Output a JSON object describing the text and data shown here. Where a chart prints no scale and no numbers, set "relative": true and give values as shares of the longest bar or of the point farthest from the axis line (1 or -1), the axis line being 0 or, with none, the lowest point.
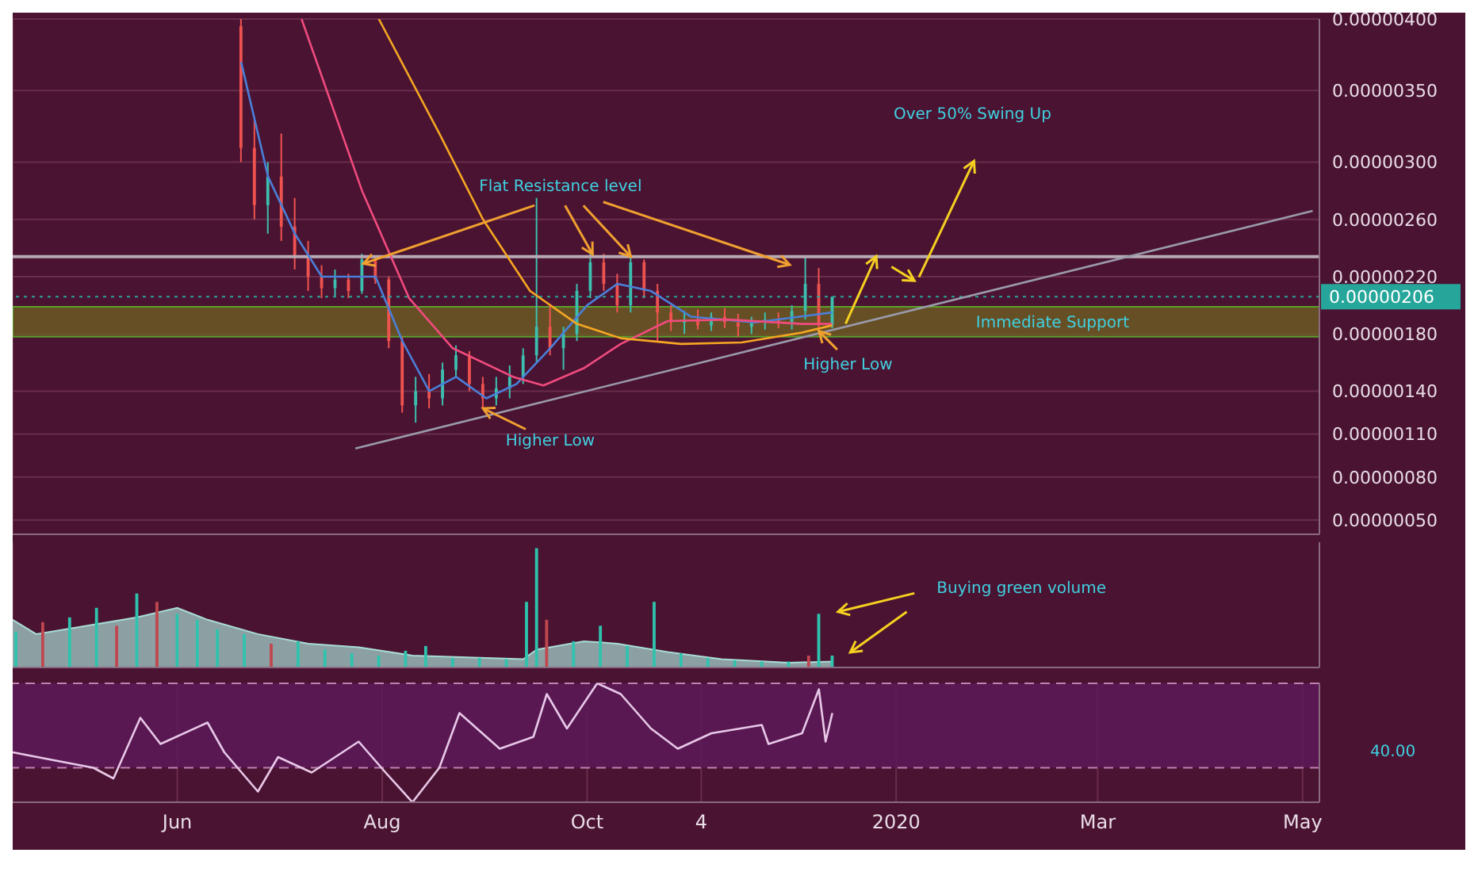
{
  "chart_data": [
    {
      "type": "candlestick",
      "xlim": [
        "2019-04-13",
        "2020-05-06"
      ],
      "ylim": [
        4e-07,
        4e-06
      ],
      "xticks": [
        {
          "value": "2019-06-01",
          "label": null
        },
        {
          "value": "2019-08-01",
          "label": null
        },
        {
          "value": "2019-10-01",
          "label": null
        },
        {
          "value": "2019-11-04",
          "label": null
        },
        {
          "value": "2020-01-01",
          "label": null
        },
        {
          "value": "2020-03-01",
          "label": null
        },
        {
          "value": "2020-05-01",
          "label": null
        }
      ],
      "yticks": [
        {
          "value": 5e-07,
          "label": "0.00000050"
        },
        {
          "value": 8e-07,
          "label": "0.00000080"
        },
        {
          "value": 1.1e-06,
          "label": "0.00000110"
        },
        {
          "value": 1.4e-06,
          "label": "0.00000140"
        },
        {
          "value": 1.8e-06,
          "label": "0.00000180"
        },
        {
          "value": 2.2e-06,
          "label": "0.00000220"
        },
        {
          "value": 2.6e-06,
          "label": "0.00000260"
        },
        {
          "value": 3e-06,
          "label": "0.00000300"
        },
        {
          "value": 3.5e-06,
          "label": "0.00000350"
        },
        {
          "value": 4e-06,
          "label": "0.00000400"
        }
      ],
      "tick_labels": "y",
      "grid": true,
      "legend": false,
      "marker": "none",
      "x": [
        "2019-06-20",
        "2019-06-24",
        "2019-06-28",
        "2019-07-02",
        "2019-07-06",
        "2019-07-10",
        "2019-07-14",
        "2019-07-18",
        "2019-07-22",
        "2019-07-26",
        "2019-07-30",
        "2019-08-03",
        "2019-08-07",
        "2019-08-11",
        "2019-08-15",
        "2019-08-19",
        "2019-08-23",
        "2019-08-27",
        "2019-08-31",
        "2019-09-04",
        "2019-09-08",
        "2019-09-12",
        "2019-09-16",
        "2019-09-20",
        "2019-09-24",
        "2019-09-28",
        "2019-10-02",
        "2019-10-06",
        "2019-10-10",
        "2019-10-14",
        "2019-10-18",
        "2019-10-22",
        "2019-10-26",
        "2019-10-30",
        "2019-11-03",
        "2019-11-07",
        "2019-11-11",
        "2019-11-15",
        "2019-11-19",
        "2019-11-23",
        "2019-11-27",
        "2019-12-01",
        "2019-12-05",
        "2019-12-09",
        "2019-12-13"
      ],
      "ohlc": [
        [
          3.95e-06,
          4e-06,
          3e-06,
          3.1e-06
        ],
        [
          3.1e-06,
          3.3e-06,
          2.6e-06,
          2.7e-06
        ],
        [
          2.7e-06,
          3e-06,
          2.5e-06,
          2.9e-06
        ],
        [
          2.9e-06,
          3.2e-06,
          2.45e-06,
          2.55e-06
        ],
        [
          2.55e-06,
          2.75e-06,
          2.25e-06,
          2.35e-06
        ],
        [
          2.35e-06,
          2.45e-06,
          2.1e-06,
          2.2e-06
        ],
        [
          2.2e-06,
          2.28e-06,
          2.05e-06,
          2.12e-06
        ],
        [
          2.12e-06,
          2.25e-06,
          2.06e-06,
          2.18e-06
        ],
        [
          2.18e-06,
          2.22e-06,
          2.05e-06,
          2.1e-06
        ],
        [
          2.1e-06,
          2.36e-06,
          2.08e-06,
          2.32e-06
        ],
        [
          2.32e-06,
          2.34e-06,
          2.15e-06,
          2.18e-06
        ],
        [
          2.18e-06,
          2.2e-06,
          1.7e-06,
          1.75e-06
        ],
        [
          1.75e-06,
          1.78e-06,
          1.25e-06,
          1.3e-06
        ],
        [
          1.3e-06,
          1.5e-06,
          1.18e-06,
          1.4e-06
        ],
        [
          1.4e-06,
          1.52e-06,
          1.28e-06,
          1.35e-06
        ],
        [
          1.35e-06,
          1.6e-06,
          1.3e-06,
          1.55e-06
        ],
        [
          1.55e-06,
          1.72e-06,
          1.5e-06,
          1.65e-06
        ],
        [
          1.65e-06,
          1.68e-06,
          1.4e-06,
          1.45e-06
        ],
        [
          1.45e-06,
          1.5e-06,
          1.28e-06,
          1.35e-06
        ],
        [
          1.35e-06,
          1.5e-06,
          1.3e-06,
          1.42e-06
        ],
        [
          1.42e-06,
          1.58e-06,
          1.35e-06,
          1.5e-06
        ],
        [
          1.5e-06,
          1.7e-06,
          1.45e-06,
          1.65e-06
        ],
        [
          1.65e-06,
          2.75e-06,
          1.6e-06,
          1.85e-06
        ],
        [
          1.85e-06,
          2e-06,
          1.65e-06,
          1.7e-06
        ],
        [
          1.7e-06,
          1.85e-06,
          1.55e-06,
          1.8e-06
        ],
        [
          1.8e-06,
          2.15e-06,
          1.75e-06,
          2.1e-06
        ],
        [
          2.1e-06,
          2.36e-06,
          2.05e-06,
          2.3e-06
        ],
        [
          2.3e-06,
          2.36e-06,
          2.1e-06,
          2.15e-06
        ],
        [
          2.15e-06,
          2.22e-06,
          1.95e-06,
          2e-06
        ],
        [
          2e-06,
          2.35e-06,
          1.95e-06,
          2.3e-06
        ],
        [
          2.3e-06,
          2.32e-06,
          2.05e-06,
          2.1e-06
        ],
        [
          2.1e-06,
          2.15e-06,
          1.75e-06,
          1.95e-06
        ],
        [
          1.95e-06,
          2e-06,
          1.82e-06,
          1.88e-06
        ],
        [
          1.88e-06,
          1.96e-06,
          1.8e-06,
          1.9e-06
        ],
        [
          1.9e-06,
          1.97e-06,
          1.83e-06,
          1.86e-06
        ],
        [
          1.86e-06,
          1.95e-06,
          1.82e-06,
          1.92e-06
        ],
        [
          1.92e-06,
          1.98e-06,
          1.84e-06,
          1.88e-06
        ],
        [
          1.88e-06,
          1.94e-06,
          1.78e-06,
          1.85e-06
        ],
        [
          1.85e-06,
          1.92e-06,
          1.8e-06,
          1.89e-06
        ],
        [
          1.89e-06,
          1.95e-06,
          1.83e-06,
          1.9e-06
        ],
        [
          1.9e-06,
          1.95e-06,
          1.84e-06,
          1.88e-06
        ],
        [
          1.88e-06,
          2e-06,
          1.83e-06,
          1.96e-06
        ],
        [
          1.96e-06,
          2.34e-06,
          1.9e-06,
          2.15e-06
        ],
        [
          2.15e-06,
          2.26e-06,
          1.82e-06,
          1.86e-06
        ],
        [
          1.86e-06,
          2.06e-06,
          1.84e-06,
          2.06e-06
        ]
      ],
      "colors": [
        "#ef5350",
        "#ef5350",
        "#3cbfae",
        "#ef5350",
        "#ef5350",
        "#ef5350",
        "#ef5350",
        "#3cbfae",
        "#ef5350",
        "#3cbfae",
        "#ef5350",
        "#ef5350",
        "#ef5350",
        "#3cbfae",
        "#ef5350",
        "#3cbfae",
        "#3cbfae",
        "#ef5350",
        "#ef5350",
        "#3cbfae",
        "#3cbfae",
        "#3cbfae",
        "#3cbfae",
        "#ef5350",
        "#3cbfae",
        "#3cbfae",
        "#3cbfae",
        "#ef5350",
        "#ef5350",
        "#3cbfae",
        "#ef5350",
        "#ef5350",
        "#ef5350",
        "#3cbfae",
        "#ef5350",
        "#3cbfae",
        "#ef5350",
        "#ef5350",
        "#3cbfae",
        "#3cbfae",
        "#ef5350",
        "#3cbfae",
        "#3cbfae",
        "#ef5350",
        "#3cbfae"
      ],
      "series": [
        {
          "type": "line",
          "color": "#4a7fd8",
          "x": [
            "2019-06-20",
            "2019-06-28",
            "2019-07-06",
            "2019-07-14",
            "2019-07-22",
            "2019-07-30",
            "2019-08-07",
            "2019-08-15",
            "2019-08-23",
            "2019-09-01",
            "2019-09-10",
            "2019-09-20",
            "2019-10-01",
            "2019-10-10",
            "2019-10-20",
            "2019-11-01",
            "2019-11-20",
            "2019-12-13"
          ],
          "values": [
            3.7e-06,
            2.9e-06,
            2.5e-06,
            2.2e-06,
            2.2e-06,
            2.2e-06,
            1.75e-06,
            1.4e-06,
            1.5e-06,
            1.35e-06,
            1.45e-06,
            1.7e-06,
            2e-06,
            2.15e-06,
            2.1e-06,
            1.92e-06,
            1.88e-06,
            1.95e-06
          ]
        },
        {
          "type": "line",
          "color": "#f04b7e",
          "x": [
            "2019-07-08",
            "2019-07-26",
            "2019-08-09",
            "2019-08-22",
            "2019-09-09",
            "2019-09-18",
            "2019-09-30",
            "2019-10-11",
            "2019-10-25",
            "2019-11-12",
            "2019-12-04",
            "2019-12-13"
          ],
          "values": [
            4e-06,
            2.8e-06,
            2.05e-06,
            1.7e-06,
            1.5e-06,
            1.44e-06,
            1.56e-06,
            1.73e-06,
            1.89e-06,
            1.9e-06,
            1.87e-06,
            1.87e-06
          ]
        },
        {
          "type": "line",
          "color": "#f5a623",
          "x": [
            "2019-07-31",
            "2019-08-18",
            "2019-08-31",
            "2019-09-14",
            "2019-09-28",
            "2019-10-11",
            "2019-10-29",
            "2019-11-16",
            "2019-12-04",
            "2019-12-13"
          ],
          "values": [
            4e-06,
            3.2e-06,
            2.6e-06,
            2.1e-06,
            1.87e-06,
            1.77e-06,
            1.73e-06,
            1.74e-06,
            1.81e-06,
            1.86e-06
          ]
        },
        {
          "type": "line",
          "color": "#9a9aab",
          "x": [
            "2019-07-24",
            "2020-05-04"
          ],
          "values": [
            1e-06,
            2.66e-06
          ]
        }
      ],
      "ref_lines": [
        {
          "axis": "y",
          "value": 2.34e-06,
          "color": "#b8aab4",
          "line_style": "solid"
        },
        {
          "axis": "y",
          "value": 2.06e-06,
          "label": "0.00000206",
          "color": "#26a69a",
          "line_style": "dotted"
        }
      ],
      "bands": [
        {
          "axis": "y",
          "from": 1.78e-06,
          "to": 1.99e-06,
          "label": "Immediate Support",
          "color": "#6b5a22"
        }
      ],
      "annotations": [
        {
          "text": "Flat Resistance level",
          "x": "2019-10-14",
          "y": 2.34e-06
        },
        {
          "text": "Higher Low",
          "x": "2019-08-31",
          "y": 1.28e-06
        },
        {
          "text": "Higher Low",
          "x": "2019-12-09",
          "y": 1.82e-06
        },
        "Over 50% Swing Up"
      ]
    },
    {
      "type": "bar",
      "relative": true,
      "xlim": [
        "2019-04-13",
        "2020-05-06"
      ],
      "xticks": [
        {
          "value": "2019-06-01",
          "label": null
        },
        {
          "value": "2019-08-01",
          "label": null
        },
        {
          "value": "2019-10-01",
          "label": null
        },
        {
          "value": "2019-11-04",
          "label": null
        },
        {
          "value": "2020-01-01",
          "label": null
        },
        {
          "value": "2020-03-01",
          "label": null
        },
        {
          "value": "2020-05-01",
          "label": null
        }
      ],
      "tick_labels": false,
      "grid": "x",
      "legend": false,
      "series": [
        {
          "type": "bar",
          "x": [
            "2019-04-14",
            "2019-04-22",
            "2019-04-30",
            "2019-05-08",
            "2019-05-14",
            "2019-05-20",
            "2019-05-26",
            "2019-06-01",
            "2019-06-07",
            "2019-06-13",
            "2019-06-21",
            "2019-06-29",
            "2019-07-07",
            "2019-07-15",
            "2019-07-23",
            "2019-07-31",
            "2019-08-08",
            "2019-08-14",
            "2019-08-22",
            "2019-08-30",
            "2019-09-07",
            "2019-09-13",
            "2019-09-16",
            "2019-09-19",
            "2019-09-27",
            "2019-10-05",
            "2019-10-13",
            "2019-10-21",
            "2019-10-29",
            "2019-11-06",
            "2019-11-14",
            "2019-11-22",
            "2019-11-30",
            "2019-12-06",
            "2019-12-09",
            "2019-12-13"
          ],
          "values": [
            0.3,
            0.38,
            0.42,
            0.5,
            0.35,
            0.62,
            0.55,
            0.45,
            0.4,
            0.32,
            0.28,
            0.2,
            0.22,
            0.15,
            0.12,
            0.1,
            0.14,
            0.18,
            0.08,
            0.08,
            0.07,
            0.55,
            1,
            0.4,
            0.22,
            0.35,
            0.18,
            0.55,
            0.12,
            0.08,
            0.06,
            0.05,
            0.05,
            0.1,
            0.45,
            0.1
          ],
          "colors": [
            "#2fc3ae",
            "#c0474f",
            "#2fc3ae",
            "#2fc3ae",
            "#c0474f",
            "#2fc3ae",
            "#c0474f",
            "#2fc3ae",
            "#2fc3ae",
            "#2fc3ae",
            "#2fc3ae",
            "#c0474f",
            "#2fc3ae",
            "#2fc3ae",
            "#2fc3ae",
            "#2fc3ae",
            "#2fc3ae",
            "#2fc3ae",
            "#2fc3ae",
            "#2fc3ae",
            "#2fc3ae",
            "#2fc3ae",
            "#2fc3ae",
            "#c0474f",
            "#2fc3ae",
            "#2fc3ae",
            "#2fc3ae",
            "#2fc3ae",
            "#2fc3ae",
            "#2fc3ae",
            "#2fc3ae",
            "#2fc3ae",
            "#2fc3ae",
            "#c0474f",
            "#2fc3ae",
            "#2fc3ae"
          ]
        },
        {
          "type": "area",
          "color": "#a8ddd4",
          "x": [
            "2019-04-13",
            "2019-04-20",
            "2019-05-01",
            "2019-05-20",
            "2019-06-01",
            "2019-06-10",
            "2019-06-25",
            "2019-07-10",
            "2019-07-25",
            "2019-08-10",
            "2019-09-01",
            "2019-09-12",
            "2019-09-16",
            "2019-09-30",
            "2019-10-10",
            "2019-10-25",
            "2019-11-10",
            "2019-11-30",
            "2019-12-13"
          ],
          "values": [
            0.4,
            0.28,
            0.33,
            0.42,
            0.5,
            0.4,
            0.28,
            0.2,
            0.17,
            0.1,
            0.08,
            0.07,
            0.15,
            0.22,
            0.2,
            0.13,
            0.07,
            0.04,
            0.05
          ]
        }
      ],
      "annotations": [
        "Buying green volume"
      ]
    },
    {
      "type": "line",
      "relative": true,
      "xlim": [
        "2019-04-13",
        "2020-05-06"
      ],
      "xticks": [
        {
          "value": "2019-06-01",
          "label": "Jun"
        },
        {
          "value": "2019-08-01",
          "label": "Aug"
        },
        {
          "value": "2019-10-01",
          "label": "Oct"
        },
        {
          "value": "2019-11-04",
          "label": "4"
        },
        {
          "value": "2020-01-01",
          "label": "2020"
        },
        {
          "value": "2020-03-01",
          "label": "Mar"
        },
        {
          "value": "2020-05-01",
          "label": "May"
        }
      ],
      "grid": "x",
      "legend": false,
      "marker": "none",
      "series": [
        {
          "type": "line",
          "color": "#e8c8e8",
          "x": [
            "2019-04-13",
            "2019-04-24",
            "2019-05-07",
            "2019-05-13",
            "2019-05-21",
            "2019-05-27",
            "2019-06-10",
            "2019-06-15",
            "2019-06-25",
            "2019-07-01",
            "2019-07-11",
            "2019-07-25",
            "2019-08-02",
            "2019-08-10",
            "2019-08-18",
            "2019-08-24",
            "2019-09-05",
            "2019-09-15",
            "2019-09-19",
            "2019-09-25",
            "2019-10-04",
            "2019-10-11",
            "2019-10-20",
            "2019-10-28",
            "2019-11-07",
            "2019-11-22",
            "2019-11-24",
            "2019-12-04",
            "2019-12-09",
            "2019-12-11",
            "2019-12-13"
          ],
          "values": [
            0.42,
            0.36,
            0.29,
            0.2,
            0.71,
            0.49,
            0.67,
            0.42,
            0.09,
            0.38,
            0.25,
            0.51,
            0.25,
            0,
            0.29,
            0.75,
            0.45,
            0.55,
            0.91,
            0.62,
            1,
            0.91,
            0.62,
            0.45,
            0.58,
            0.65,
            0.49,
            0.58,
            0.95,
            0.51,
            0.75
          ]
        }
      ],
      "ref_lines": [
        {
          "axis": "y",
          "value": 1,
          "color": "#c080b0",
          "line_style": "dashed"
        },
        {
          "axis": "y",
          "value": 0.29,
          "color": "#c080b0",
          "line_style": "dashed"
        }
      ],
      "bands": [
        {
          "axis": "y",
          "from": 0.29,
          "to": 1,
          "color": "#5c1a58"
        }
      ],
      "annotations": [
        "40.00"
      ]
    }
  ]
}
